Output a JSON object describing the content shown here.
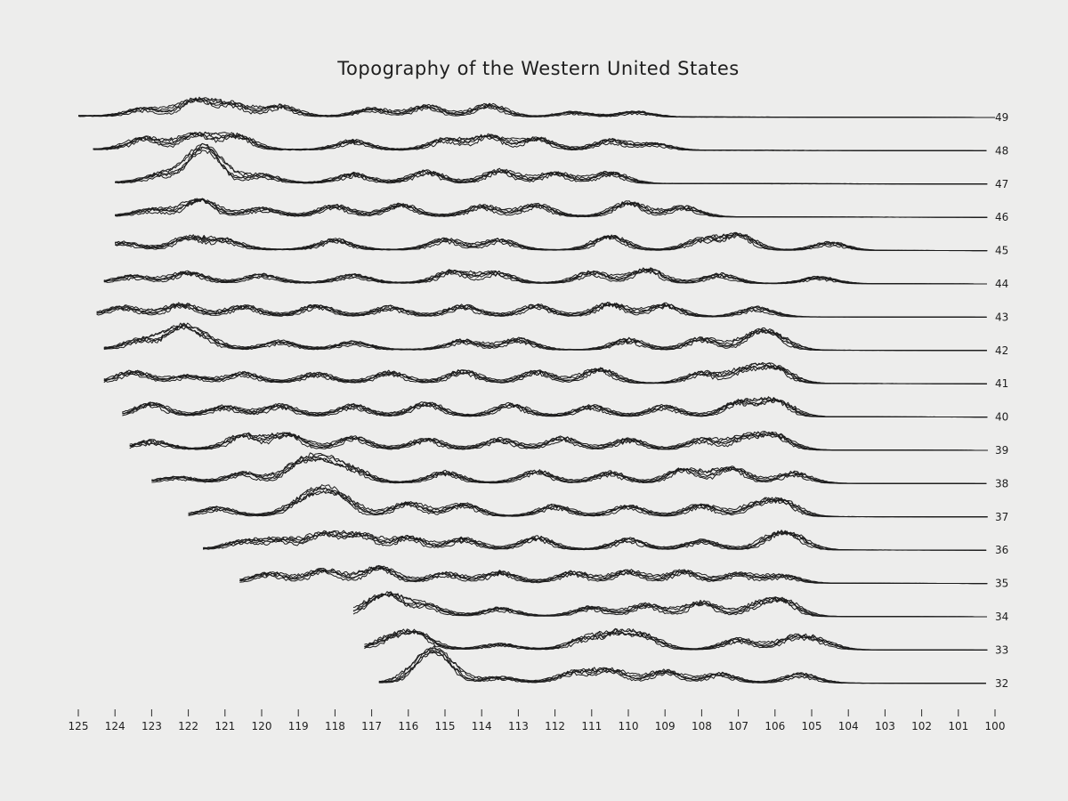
{
  "chart_data": {
    "type": "line",
    "title": "Topography of the Western United States",
    "xlabel": "",
    "ylabel": "",
    "x_ticks": [
      "125",
      "124",
      "123",
      "122",
      "121",
      "120",
      "119",
      "118",
      "117",
      "116",
      "115",
      "114",
      "113",
      "112",
      "111",
      "110",
      "109",
      "108",
      "107",
      "106",
      "105",
      "104",
      "103",
      "102",
      "101",
      "100"
    ],
    "xlim": [
      125,
      100
    ],
    "grid": false,
    "legend": "none",
    "line_color": "#1c1c1c",
    "background": "#ededec",
    "series": [
      {
        "name": "49",
        "lat": 49,
        "x_start": 125.0,
        "x_end": 100.0,
        "peaks": [
          [
            123.2,
            0.3
          ],
          [
            121.8,
            0.65
          ],
          [
            120.8,
            0.45
          ],
          [
            119.5,
            0.4
          ],
          [
            117.0,
            0.3
          ],
          [
            115.5,
            0.4
          ],
          [
            113.8,
            0.45
          ],
          [
            111.5,
            0.18
          ],
          [
            109.8,
            0.2
          ]
        ]
      },
      {
        "name": "48",
        "lat": 48,
        "x_start": 124.6,
        "x_end": 100.2,
        "peaks": [
          [
            123.2,
            0.45
          ],
          [
            121.8,
            0.6
          ],
          [
            120.7,
            0.55
          ],
          [
            117.5,
            0.35
          ],
          [
            115.0,
            0.4
          ],
          [
            113.8,
            0.55
          ],
          [
            112.5,
            0.45
          ],
          [
            110.5,
            0.38
          ],
          [
            109.3,
            0.25
          ]
        ]
      },
      {
        "name": "47",
        "lat": 47,
        "x_start": 124.0,
        "x_end": 100.2,
        "peaks": [
          [
            122.8,
            0.3
          ],
          [
            121.7,
            0.85
          ],
          [
            121.4,
            0.7
          ],
          [
            120.0,
            0.3
          ],
          [
            117.5,
            0.35
          ],
          [
            115.5,
            0.45
          ],
          [
            113.5,
            0.5
          ],
          [
            112.0,
            0.4
          ],
          [
            110.5,
            0.42
          ]
        ]
      },
      {
        "name": "46",
        "lat": 46,
        "x_start": 124.0,
        "x_end": 100.2,
        "peaks": [
          [
            123.0,
            0.25
          ],
          [
            121.7,
            0.65
          ],
          [
            120.0,
            0.3
          ],
          [
            118.0,
            0.4
          ],
          [
            116.2,
            0.45
          ],
          [
            114.0,
            0.4
          ],
          [
            112.5,
            0.45
          ],
          [
            110.0,
            0.55
          ],
          [
            108.5,
            0.38
          ]
        ]
      },
      {
        "name": "45",
        "lat": 45,
        "x_start": 124.0,
        "x_end": 100.2,
        "peaks": [
          [
            123.8,
            0.25
          ],
          [
            122.0,
            0.45
          ],
          [
            121.0,
            0.35
          ],
          [
            118.0,
            0.38
          ],
          [
            115.0,
            0.4
          ],
          [
            113.5,
            0.38
          ],
          [
            110.5,
            0.55
          ],
          [
            108.0,
            0.4
          ],
          [
            107.0,
            0.6
          ],
          [
            104.5,
            0.3
          ]
        ]
      },
      {
        "name": "44",
        "lat": 44,
        "x_start": 124.3,
        "x_end": 100.2,
        "peaks": [
          [
            123.5,
            0.25
          ],
          [
            122.0,
            0.4
          ],
          [
            120.0,
            0.3
          ],
          [
            117.5,
            0.3
          ],
          [
            114.8,
            0.45
          ],
          [
            113.6,
            0.4
          ],
          [
            111.0,
            0.42
          ],
          [
            109.5,
            0.55
          ],
          [
            107.5,
            0.35
          ],
          [
            104.8,
            0.25
          ]
        ]
      },
      {
        "name": "43",
        "lat": 43,
        "x_start": 124.5,
        "x_end": 100.2,
        "peaks": [
          [
            123.8,
            0.35
          ],
          [
            122.2,
            0.45
          ],
          [
            120.5,
            0.38
          ],
          [
            118.5,
            0.4
          ],
          [
            116.5,
            0.35
          ],
          [
            114.5,
            0.4
          ],
          [
            112.5,
            0.42
          ],
          [
            110.5,
            0.5
          ],
          [
            109.0,
            0.45
          ],
          [
            106.5,
            0.35
          ]
        ]
      },
      {
        "name": "42",
        "lat": 42,
        "x_start": 124.3,
        "x_end": 100.2,
        "peaks": [
          [
            123.3,
            0.35
          ],
          [
            122.2,
            0.85
          ],
          [
            121.5,
            0.3
          ],
          [
            119.5,
            0.3
          ],
          [
            117.5,
            0.28
          ],
          [
            114.5,
            0.35
          ],
          [
            113.0,
            0.4
          ],
          [
            110.0,
            0.4
          ],
          [
            108.0,
            0.45
          ],
          [
            106.5,
            0.55
          ],
          [
            106.0,
            0.4
          ]
        ]
      },
      {
        "name": "41",
        "lat": 41,
        "x_start": 124.3,
        "x_end": 100.2,
        "peaks": [
          [
            123.5,
            0.4
          ],
          [
            122.0,
            0.25
          ],
          [
            120.5,
            0.35
          ],
          [
            118.5,
            0.35
          ],
          [
            116.5,
            0.4
          ],
          [
            114.5,
            0.45
          ],
          [
            112.5,
            0.45
          ],
          [
            110.8,
            0.55
          ],
          [
            108.0,
            0.4
          ],
          [
            106.8,
            0.5
          ],
          [
            106.0,
            0.6
          ]
        ]
      },
      {
        "name": "40",
        "lat": 40,
        "x_start": 123.8,
        "x_end": 100.2,
        "peaks": [
          [
            123.0,
            0.45
          ],
          [
            121.0,
            0.35
          ],
          [
            119.5,
            0.4
          ],
          [
            117.5,
            0.4
          ],
          [
            115.5,
            0.5
          ],
          [
            113.2,
            0.45
          ],
          [
            111.0,
            0.4
          ],
          [
            109.0,
            0.4
          ],
          [
            107.0,
            0.55
          ],
          [
            106.0,
            0.65
          ]
        ]
      },
      {
        "name": "39",
        "lat": 39,
        "x_start": 123.6,
        "x_end": 100.2,
        "peaks": [
          [
            123.0,
            0.3
          ],
          [
            120.5,
            0.55
          ],
          [
            119.3,
            0.6
          ],
          [
            117.5,
            0.45
          ],
          [
            115.5,
            0.4
          ],
          [
            113.5,
            0.4
          ],
          [
            111.8,
            0.45
          ],
          [
            110.0,
            0.4
          ],
          [
            108.0,
            0.4
          ],
          [
            106.8,
            0.45
          ],
          [
            106.0,
            0.55
          ]
        ]
      },
      {
        "name": "38",
        "lat": 38,
        "x_start": 123.0,
        "x_end": 100.2,
        "peaks": [
          [
            122.3,
            0.2
          ],
          [
            120.5,
            0.35
          ],
          [
            119.0,
            0.65
          ],
          [
            118.3,
            0.75
          ],
          [
            117.5,
            0.45
          ],
          [
            115.0,
            0.4
          ],
          [
            112.5,
            0.45
          ],
          [
            110.5,
            0.4
          ],
          [
            108.5,
            0.55
          ],
          [
            107.2,
            0.6
          ],
          [
            105.5,
            0.4
          ]
        ]
      },
      {
        "name": "37",
        "lat": 37,
        "x_start": 122.0,
        "x_end": 100.2,
        "peaks": [
          [
            121.2,
            0.3
          ],
          [
            119.0,
            0.35
          ],
          [
            118.4,
            0.75
          ],
          [
            117.8,
            0.55
          ],
          [
            116.0,
            0.5
          ],
          [
            114.5,
            0.45
          ],
          [
            112.0,
            0.4
          ],
          [
            110.0,
            0.4
          ],
          [
            108.0,
            0.45
          ],
          [
            106.5,
            0.4
          ],
          [
            105.8,
            0.55
          ]
        ]
      },
      {
        "name": "36",
        "lat": 36,
        "x_start": 121.6,
        "x_end": 100.2,
        "peaks": [
          [
            120.5,
            0.3
          ],
          [
            119.5,
            0.35
          ],
          [
            118.3,
            0.6
          ],
          [
            117.3,
            0.55
          ],
          [
            116.0,
            0.45
          ],
          [
            114.5,
            0.4
          ],
          [
            112.5,
            0.45
          ],
          [
            110.0,
            0.4
          ],
          [
            108.0,
            0.35
          ],
          [
            106.0,
            0.45
          ],
          [
            105.5,
            0.4
          ]
        ]
      },
      {
        "name": "35",
        "lat": 35,
        "x_start": 120.6,
        "x_end": 100.2,
        "peaks": [
          [
            119.8,
            0.35
          ],
          [
            118.3,
            0.5
          ],
          [
            116.8,
            0.6
          ],
          [
            115.0,
            0.35
          ],
          [
            113.5,
            0.4
          ],
          [
            111.5,
            0.4
          ],
          [
            110.0,
            0.45
          ],
          [
            108.5,
            0.45
          ],
          [
            107.0,
            0.35
          ],
          [
            105.8,
            0.3
          ]
        ]
      },
      {
        "name": "34",
        "lat": 34,
        "x_start": 117.5,
        "x_end": 100.2,
        "peaks": [
          [
            117.0,
            0.3
          ],
          [
            116.5,
            0.7
          ],
          [
            115.5,
            0.4
          ],
          [
            113.5,
            0.3
          ],
          [
            111.0,
            0.35
          ],
          [
            109.5,
            0.45
          ],
          [
            108.0,
            0.55
          ],
          [
            106.5,
            0.35
          ],
          [
            105.8,
            0.6
          ]
        ]
      },
      {
        "name": "33",
        "lat": 33,
        "x_start": 117.2,
        "x_end": 100.2,
        "peaks": [
          [
            116.5,
            0.35
          ],
          [
            115.8,
            0.6
          ],
          [
            113.5,
            0.2
          ],
          [
            111.2,
            0.4
          ],
          [
            110.3,
            0.6
          ],
          [
            109.5,
            0.45
          ],
          [
            107.0,
            0.4
          ],
          [
            105.5,
            0.45
          ],
          [
            104.8,
            0.3
          ]
        ]
      },
      {
        "name": "32",
        "lat": 32,
        "x_start": 116.8,
        "x_end": 100.2,
        "peaks": [
          [
            115.5,
            0.8
          ],
          [
            115.1,
            0.7
          ],
          [
            113.5,
            0.2
          ],
          [
            111.5,
            0.4
          ],
          [
            110.5,
            0.5
          ],
          [
            109.0,
            0.45
          ],
          [
            107.5,
            0.35
          ],
          [
            105.3,
            0.35
          ]
        ]
      }
    ]
  }
}
